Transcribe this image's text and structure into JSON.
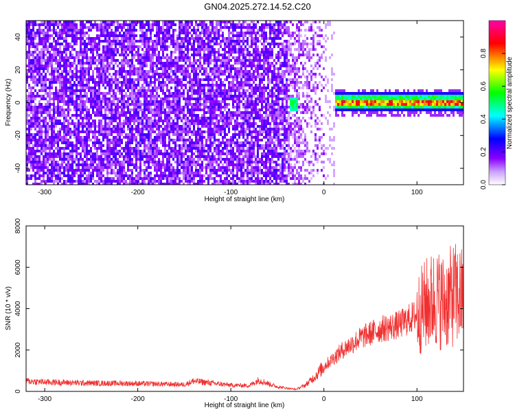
{
  "title": "GN04.2025.272.14.52.C20",
  "colors": {
    "plot_bg": "#ffffff",
    "snr_line": "#f03030",
    "frame": "#000000"
  },
  "chart_data": [
    {
      "type": "heatmap",
      "name": "spectrogram",
      "xlabel": "Height of straight line (km)",
      "ylabel": "Frequency (Hz)",
      "xlim": [
        -320,
        150
      ],
      "ylim": [
        -50,
        50
      ],
      "x_ticks": [
        -300,
        -200,
        -100,
        0,
        100
      ],
      "y_ticks": [
        -40,
        -20,
        0,
        20,
        40
      ],
      "x_tick_labels": [
        "-300",
        "-200",
        "-100",
        "0",
        "100"
      ],
      "y_tick_labels": [
        "-40",
        "-20",
        "0",
        "20",
        "40"
      ],
      "grid": false,
      "description_of_pattern": [
        {
          "x_range": [
            -320,
            -40
          ],
          "kind": "broadband noise",
          "amplitude": 0.15
        },
        {
          "x_range": [
            -40,
            0
          ],
          "kind": "fading noise",
          "amplitude": 0.1
        },
        {
          "x_range": [
            10,
            150
          ],
          "kind": "carrier line near 0-2 Hz",
          "amplitude": 0.85
        }
      ],
      "colorbar": {
        "label": "Normalized spectral amplitude",
        "range": [
          0.0,
          1.0
        ],
        "ticks": [
          0.0,
          0.2,
          0.4,
          0.6,
          0.8
        ],
        "tick_labels": [
          "0.0",
          "0.2",
          "0.4",
          "0.6",
          "0.8"
        ],
        "colormap": [
          "#ffffff",
          "#8a00ff",
          "#0000ff",
          "#00ffff",
          "#00ff00",
          "#ffff00",
          "#ff0000",
          "#ff00aa"
        ]
      }
    },
    {
      "type": "line",
      "name": "snr",
      "xlabel": "Height of straight line (km)",
      "ylabel": "SNR (10 * v/v)",
      "xlim": [
        -320,
        150
      ],
      "ylim": [
        0,
        8000
      ],
      "x_ticks": [
        -300,
        -200,
        -100,
        0,
        100
      ],
      "y_ticks": [
        0,
        2000,
        4000,
        6000,
        8000
      ],
      "x_tick_labels": [
        "-300",
        "-200",
        "-100",
        "0",
        "100"
      ],
      "y_tick_labels": [
        "0",
        "2000",
        "4000",
        "6000",
        "8000"
      ],
      "grid": false,
      "series": [
        {
          "color": "#f03030",
          "x": [
            -320,
            -300,
            -250,
            -200,
            -150,
            -140,
            -100,
            -80,
            -70,
            -50,
            -30,
            -20,
            -10,
            0,
            20,
            40,
            60,
            80,
            100,
            110,
            120,
            130,
            140,
            150
          ],
          "y": [
            500,
            450,
            400,
            380,
            330,
            500,
            300,
            280,
            550,
            220,
            100,
            300,
            700,
            1200,
            2000,
            2600,
            3000,
            3200,
            3700,
            4200,
            4500,
            4300,
            4700,
            4500
          ]
        }
      ]
    }
  ]
}
